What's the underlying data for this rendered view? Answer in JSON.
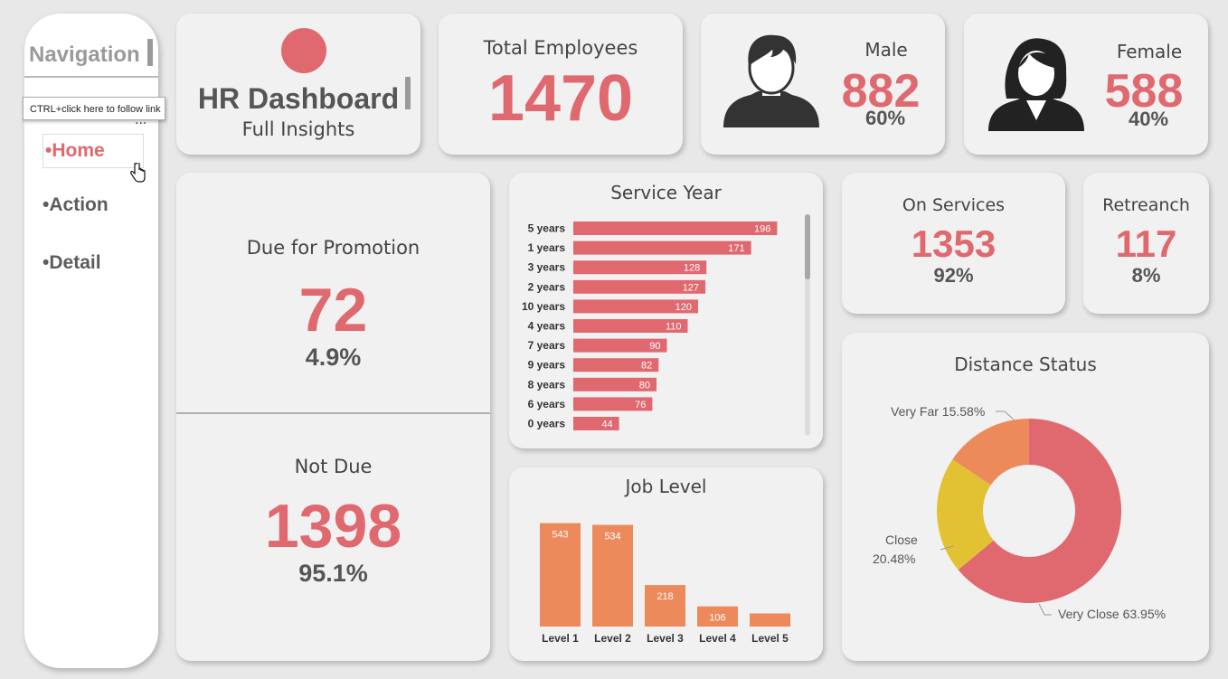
{
  "nav": {
    "title": "Navigation",
    "tooltip": "CTRL+click here to follow link",
    "more": "...",
    "items": [
      {
        "label": "•Home"
      },
      {
        "label": "•Action"
      },
      {
        "label": "•Detail"
      }
    ]
  },
  "header": {
    "title": "HR Dashboard",
    "subtitle": "Full Insights"
  },
  "kpis": {
    "total": {
      "label": "Total Employees",
      "value": "1470"
    },
    "male": {
      "label": "Male",
      "value": "882",
      "pct": "60%"
    },
    "female": {
      "label": "Female",
      "value": "588",
      "pct": "40%"
    },
    "due": {
      "label": "Due for Promotion",
      "value": "72",
      "pct": "4.9%"
    },
    "notdue": {
      "label": "Not Due",
      "value": "1398",
      "pct": "95.1%"
    },
    "onservice": {
      "label": "On Services",
      "value": "1353",
      "pct": "92%"
    },
    "retreanch": {
      "label": "Retreanch",
      "value": "117",
      "pct": "8%"
    }
  },
  "colors": {
    "accent": "#e0686f",
    "orange": "#ed8a5c",
    "yellow": "#e2c232",
    "panel": "#f1f1f1"
  },
  "chart_data": [
    {
      "type": "bar",
      "orientation": "horizontal",
      "title": "Service Year",
      "categories": [
        "5 years",
        "1 years",
        "3 years",
        "2 years",
        "10 years",
        "4 years",
        "7 years",
        "9 years",
        "8 years",
        "6 years",
        "0 years"
      ],
      "values": [
        196,
        171,
        128,
        127,
        120,
        110,
        90,
        82,
        80,
        76,
        44
      ],
      "xlim": [
        0,
        200
      ],
      "color": "#e0686f"
    },
    {
      "type": "bar",
      "title": "Job Level",
      "categories": [
        "Level 1",
        "Level 2",
        "Level 3",
        "Level 4",
        "Level 5"
      ],
      "values": [
        543,
        534,
        218,
        106,
        69
      ],
      "data_labels": [
        "543",
        "534",
        "218",
        "106",
        ""
      ],
      "ylim": [
        0,
        560
      ],
      "color": "#ed8a5c"
    },
    {
      "type": "pie",
      "donut": true,
      "title": "Distance Status",
      "slices": [
        {
          "name": "Very Close",
          "value": 63.95,
          "label": "Very Close 63.95%",
          "color": "#e0686f"
        },
        {
          "name": "Close",
          "value": 20.48,
          "label": "Close 20.48%",
          "color": "#e2c232"
        },
        {
          "name": "Very Far",
          "value": 15.58,
          "label": "Very Far 15.58%",
          "color": "#ed8a5c"
        }
      ],
      "slice_labels": {
        "very_close": "Very Close 63.95%",
        "close_line1": "Close",
        "close_line2": "20.48%",
        "very_far": "Very Far 15.58%"
      }
    }
  ]
}
